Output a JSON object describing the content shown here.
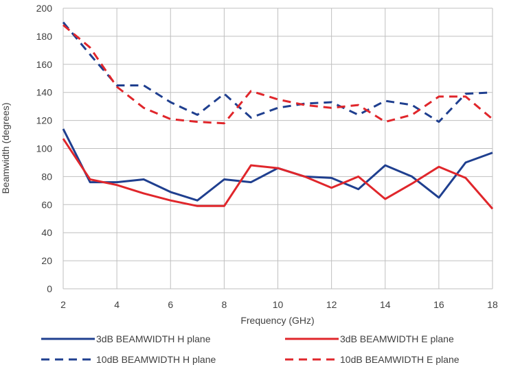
{
  "chart_data": {
    "type": "line",
    "xlabel": "Frequency (GHz)",
    "ylabel": "Beamwidth (degrees)",
    "xlim": [
      2,
      18
    ],
    "ylim": [
      0,
      200
    ],
    "x_ticks": [
      2,
      4,
      6,
      8,
      10,
      12,
      14,
      16,
      18
    ],
    "y_ticks": [
      0,
      20,
      40,
      60,
      80,
      100,
      120,
      140,
      160,
      180,
      200
    ],
    "grid": true,
    "legend_position": "bottom",
    "x": [
      2,
      3,
      4,
      5,
      6,
      7,
      8,
      9,
      10,
      11,
      12,
      13,
      14,
      15,
      16,
      17,
      18
    ],
    "series": [
      {
        "name": "3dB BEAMWIDTH H plane",
        "color": "#1f3f8f",
        "dash": "solid",
        "values": [
          114,
          76,
          76,
          78,
          69,
          63,
          78,
          76,
          86,
          80,
          79,
          71,
          88,
          80,
          65,
          90,
          97
        ]
      },
      {
        "name": "3dB BEAMWIDTH E plane",
        "color": "#e0262b",
        "dash": "solid",
        "values": [
          107,
          78,
          74,
          68,
          63,
          59,
          59,
          88,
          86,
          80,
          72,
          80,
          64,
          75,
          87,
          79,
          57
        ]
      },
      {
        "name": "10dB BEAMWIDTH H plane",
        "color": "#1f3f8f",
        "dash": "dashed",
        "values": [
          190,
          167,
          145,
          145,
          133,
          124,
          139,
          122,
          129,
          132,
          133,
          124,
          134,
          131,
          119,
          139,
          140
        ]
      },
      {
        "name": "10dB BEAMWIDTH E plane",
        "color": "#e0262b",
        "dash": "dashed",
        "values": [
          188,
          172,
          144,
          129,
          121,
          119,
          118,
          141,
          135,
          131,
          129,
          131,
          119,
          124,
          137,
          137,
          121
        ]
      }
    ]
  }
}
